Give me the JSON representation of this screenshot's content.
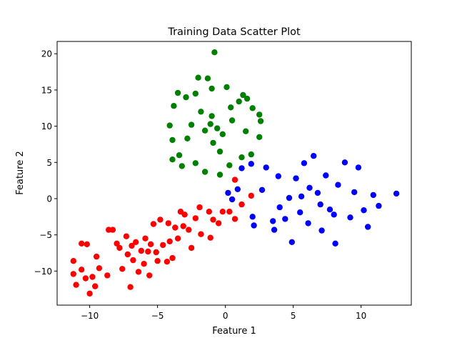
{
  "chart_data": {
    "type": "scatter",
    "title": "Training Data Scatter Plot",
    "xlabel": "Feature 1",
    "ylabel": "Feature 2",
    "xlim": [
      -12.4,
      13.7
    ],
    "ylim": [
      -14.7,
      21.7
    ],
    "xticks": [
      -10,
      -5,
      0,
      5,
      10
    ],
    "yticks": [
      -10,
      -5,
      0,
      5,
      10,
      15,
      20
    ],
    "xtick_labels": [
      "−10",
      "−5",
      "0",
      "5",
      "10"
    ],
    "ytick_labels": [
      "−10",
      "−5",
      "0",
      "5",
      "10",
      "15",
      "20"
    ],
    "grid": false,
    "legend": "none",
    "series": [
      {
        "color": "#ff0000",
        "points": [
          [
            -11.2,
            -10.4
          ],
          [
            -11.0,
            -11.9
          ],
          [
            -11.2,
            -8.6
          ],
          [
            -10.6,
            -9.8
          ],
          [
            -10.6,
            -6.2
          ],
          [
            -10.2,
            -6.3
          ],
          [
            -10.3,
            -11.0
          ],
          [
            -10.0,
            -13.1
          ],
          [
            -9.6,
            -12.1
          ],
          [
            -9.5,
            -8.0
          ],
          [
            -9.8,
            -10.8
          ],
          [
            -9.3,
            -9.6
          ],
          [
            -8.7,
            -10.6
          ],
          [
            -8.6,
            -4.3
          ],
          [
            -8.3,
            -4.3
          ],
          [
            -8.0,
            -6.2
          ],
          [
            -7.6,
            -9.7
          ],
          [
            -7.3,
            -5.2
          ],
          [
            -7.0,
            -12.2
          ],
          [
            -6.9,
            -6.5
          ],
          [
            -6.4,
            -10.1
          ],
          [
            -6.0,
            -9.0
          ],
          [
            -5.7,
            -7.3
          ],
          [
            -5.3,
            -3.5
          ],
          [
            -5.6,
            -10.6
          ],
          [
            -5.0,
            -8.6
          ],
          [
            -4.8,
            -2.9
          ],
          [
            -4.2,
            -3.4
          ],
          [
            -4.3,
            -8.7
          ],
          [
            -3.9,
            -8.2
          ],
          [
            -3.7,
            -4.0
          ],
          [
            -3.3,
            -1.8
          ],
          [
            -3.0,
            -2.2
          ],
          [
            -2.5,
            -6.8
          ],
          [
            -2.2,
            -2.7
          ],
          [
            -1.9,
            -1.2
          ],
          [
            -1.8,
            -4.9
          ],
          [
            -1.2,
            -1.8
          ],
          [
            -1.1,
            -5.4
          ],
          [
            -0.9,
            -2.9
          ],
          [
            -0.5,
            -3.4
          ],
          [
            -0.2,
            -1.8
          ],
          [
            0.3,
            -1.8
          ],
          [
            0.7,
            -2.8
          ],
          [
            0.7,
            2.6
          ],
          [
            1.2,
            -0.8
          ],
          [
            1.9,
            0.4
          ],
          [
            -7.8,
            -6.8
          ],
          [
            -6.8,
            -8.5
          ],
          [
            -5.9,
            -5.5
          ],
          [
            -4.6,
            -6.4
          ],
          [
            -3.5,
            -5.5
          ],
          [
            -2.7,
            -4.3
          ],
          [
            -6.2,
            -7.2
          ],
          [
            -5.1,
            -7.4
          ],
          [
            -7.2,
            -7.7
          ],
          [
            -4.1,
            -5.9
          ],
          [
            -3.1,
            -3.8
          ],
          [
            -5.5,
            -6.3
          ],
          [
            -6.6,
            -6.0
          ]
        ]
      },
      {
        "color": "#008000",
        "points": [
          [
            -0.8,
            20.2
          ],
          [
            -2.0,
            16.7
          ],
          [
            -1.3,
            16.6
          ],
          [
            -3.5,
            14.6
          ],
          [
            -2.9,
            14.0
          ],
          [
            -2.2,
            14.5
          ],
          [
            -1.0,
            15.2
          ],
          [
            0.1,
            15.4
          ],
          [
            1.3,
            14.3
          ],
          [
            1.6,
            13.8
          ],
          [
            -3.8,
            12.8
          ],
          [
            -4.1,
            10.1
          ],
          [
            -3.9,
            8.1
          ],
          [
            -3.9,
            5.4
          ],
          [
            -3.4,
            6.0
          ],
          [
            -3.2,
            4.5
          ],
          [
            -2.2,
            4.9
          ],
          [
            -1.5,
            3.7
          ],
          [
            -0.4,
            3.3
          ],
          [
            0.3,
            4.6
          ],
          [
            1.2,
            5.7
          ],
          [
            1.9,
            6.1
          ],
          [
            2.5,
            8.5
          ],
          [
            2.6,
            10.7
          ],
          [
            2.5,
            11.6
          ],
          [
            2.0,
            12.5
          ],
          [
            1.0,
            13.4
          ],
          [
            -1.0,
            11.4
          ],
          [
            -1.5,
            9.4
          ],
          [
            -0.2,
            8.9
          ],
          [
            -2.5,
            10.2
          ],
          [
            0.5,
            10.8
          ],
          [
            -0.9,
            7.7
          ],
          [
            -1.8,
            12.0
          ],
          [
            0.4,
            12.6
          ],
          [
            -2.8,
            8.3
          ],
          [
            1.5,
            9.3
          ],
          [
            -0.4,
            6.5
          ],
          [
            -1.1,
            10.3
          ],
          [
            -0.6,
            9.7
          ]
        ]
      },
      {
        "color": "#0000ff",
        "points": [
          [
            0.2,
            0.8
          ],
          [
            0.5,
            -0.1
          ],
          [
            0.9,
            1.3
          ],
          [
            1.2,
            4.2
          ],
          [
            1.9,
            4.8
          ],
          [
            2.0,
            -2.5
          ],
          [
            2.1,
            -3.7
          ],
          [
            2.7,
            1.2
          ],
          [
            3.0,
            4.3
          ],
          [
            3.5,
            -3.1
          ],
          [
            3.6,
            -4.3
          ],
          [
            3.9,
            3.1
          ],
          [
            4.0,
            -1.2
          ],
          [
            4.4,
            -2.8
          ],
          [
            4.7,
            0.1
          ],
          [
            4.9,
            -6.0
          ],
          [
            5.2,
            2.8
          ],
          [
            5.5,
            -1.9
          ],
          [
            5.8,
            4.9
          ],
          [
            6.1,
            -3.4
          ],
          [
            6.5,
            5.9
          ],
          [
            6.8,
            0.8
          ],
          [
            7.1,
            -4.4
          ],
          [
            7.4,
            3.2
          ],
          [
            7.7,
            -1.5
          ],
          [
            8.1,
            -6.2
          ],
          [
            8.3,
            1.9
          ],
          [
            8.8,
            5.0
          ],
          [
            9.2,
            -2.6
          ],
          [
            9.5,
            0.9
          ],
          [
            9.8,
            4.3
          ],
          [
            10.2,
            -1.6
          ],
          [
            10.5,
            -3.9
          ],
          [
            10.9,
            0.5
          ],
          [
            11.3,
            -1.0
          ],
          [
            12.6,
            0.7
          ],
          [
            6.2,
            1.5
          ],
          [
            7.0,
            -0.8
          ],
          [
            5.6,
            0.3
          ],
          [
            8.0,
            -2.2
          ]
        ]
      }
    ]
  }
}
